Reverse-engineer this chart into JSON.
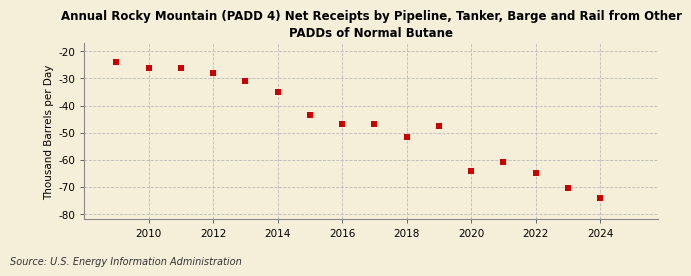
{
  "title": "Annual Rocky Mountain (PADD 4) Net Receipts by Pipeline, Tanker, Barge and Rail from Other\nPADDs of Normal Butane",
  "ylabel": "Thousand Barrels per Day",
  "source": "Source: U.S. Energy Information Administration",
  "years": [
    2009,
    2010,
    2011,
    2012,
    2013,
    2014,
    2015,
    2016,
    2017,
    2018,
    2019,
    2020,
    2021,
    2022,
    2023,
    2024
  ],
  "values": [
    -24.0,
    -26.0,
    -26.0,
    -28.0,
    -31.0,
    -35.0,
    -43.5,
    -47.0,
    -47.0,
    -51.5,
    -47.5,
    -64.0,
    -61.0,
    -65.0,
    -70.5,
    -74.0
  ],
  "marker_color": "#cc0000",
  "marker_size": 25,
  "background_color": "#f5eed8",
  "plot_bg_color": "#f5eed8",
  "grid_color": "#bbbbbb",
  "ylim": [
    -82,
    -17
  ],
  "yticks": [
    -80,
    -70,
    -60,
    -50,
    -40,
    -30,
    -20
  ],
  "xlim": [
    2008.0,
    2025.8
  ],
  "xticks": [
    2010,
    2012,
    2014,
    2016,
    2018,
    2020,
    2022,
    2024
  ]
}
